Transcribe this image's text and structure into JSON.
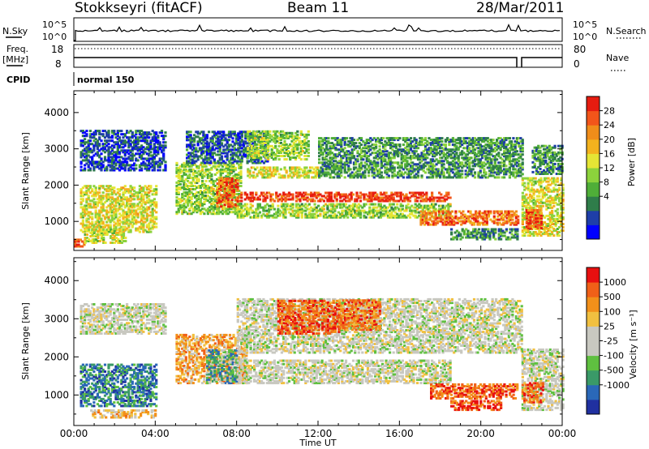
{
  "header": {
    "station": "Stokkseyri (fitACF)",
    "beam": "Beam 11",
    "date": "28/Mar/2011"
  },
  "strips": {
    "nsky_label": "N.Sky",
    "nsky_ticks": [
      "10^5",
      "10^0"
    ],
    "nsearch_label": "N.Search",
    "nsearch_ticks": [
      "10^5",
      "10^0"
    ],
    "freq_label": "Freq.",
    "freq_unit": "[MHz]",
    "freq_ticks": [
      "18",
      "8"
    ],
    "nave_label": "Nave",
    "nave_ticks": [
      "80",
      "0"
    ],
    "cpid_label": "CPID",
    "cpid_value": "normal 150"
  },
  "chart_data": [
    {
      "type": "heatmap",
      "quantity": "power",
      "xlabel": "Time UT",
      "ylabel": "Slant Range [km]",
      "x_ticks": [
        "00:00",
        "04:00",
        "08:00",
        "12:00",
        "16:00",
        "20:00",
        "00:00"
      ],
      "y_ticks": [
        "1000",
        "2000",
        "3000",
        "4000"
      ],
      "xlim_hours": [
        0,
        24
      ],
      "ylim_km": [
        200,
        4600
      ],
      "colorbar": {
        "label": "Power [dB]",
        "ticks": [
          "28",
          "24",
          "20",
          "16",
          "12",
          "8",
          "4"
        ],
        "colors": [
          "#0000ff",
          "#1e3ea8",
          "#2f7d4a",
          "#4fae38",
          "#8cd23c",
          "#e5e535",
          "#f3b21e",
          "#f08d1a",
          "#f2551a",
          "#e61c10"
        ]
      },
      "regions": [
        {
          "t": [
            0.3,
            4.0
          ],
          "r": [
            700,
            2000
          ],
          "level": 0.55
        },
        {
          "t": [
            0.0,
            0.5
          ],
          "r": [
            300,
            500
          ],
          "level": 0.85
        },
        {
          "t": [
            0.5,
            2.5
          ],
          "r": [
            400,
            800
          ],
          "level": 0.5
        },
        {
          "t": [
            0.3,
            4.5
          ],
          "r": [
            2400,
            3500
          ],
          "level": 0.15
        },
        {
          "t": [
            5.0,
            8.2
          ],
          "r": [
            1200,
            2600
          ],
          "level": 0.45
        },
        {
          "t": [
            7.0,
            8.0
          ],
          "r": [
            1400,
            2200
          ],
          "level": 0.85
        },
        {
          "t": [
            5.5,
            9.5
          ],
          "r": [
            2600,
            3500
          ],
          "level": 0.2
        },
        {
          "t": [
            8.0,
            18.5
          ],
          "r": [
            1100,
            1500
          ],
          "level": 0.45
        },
        {
          "t": [
            8.0,
            18.5
          ],
          "r": [
            1550,
            1800
          ],
          "level": 0.9
        },
        {
          "t": [
            8.5,
            12.0
          ],
          "r": [
            2200,
            2500
          ],
          "level": 0.55
        },
        {
          "t": [
            8.5,
            11.5
          ],
          "r": [
            2700,
            3500
          ],
          "level": 0.45
        },
        {
          "t": [
            12.0,
            22.0
          ],
          "r": [
            2200,
            3300
          ],
          "level": 0.3
        },
        {
          "t": [
            17.0,
            21.8
          ],
          "r": [
            900,
            1300
          ],
          "level": 0.8
        },
        {
          "t": [
            18.5,
            21.8
          ],
          "r": [
            500,
            800
          ],
          "level": 0.3
        },
        {
          "t": [
            22.0,
            24.0
          ],
          "r": [
            600,
            2200
          ],
          "level": 0.55
        },
        {
          "t": [
            22.2,
            23.0
          ],
          "r": [
            800,
            1300
          ],
          "level": 0.85
        },
        {
          "t": [
            22.5,
            24.0
          ],
          "r": [
            2300,
            3100
          ],
          "level": 0.3
        }
      ]
    },
    {
      "type": "heatmap",
      "quantity": "velocity",
      "xlabel": "Time UT",
      "ylabel": "Slant Range [km]",
      "x_ticks": [
        "00:00",
        "04:00",
        "08:00",
        "12:00",
        "16:00",
        "20:00",
        "00:00"
      ],
      "y_ticks": [
        "1000",
        "2000",
        "3000",
        "4000"
      ],
      "xlim_hours": [
        0,
        24
      ],
      "ylim_km": [
        200,
        4600
      ],
      "colorbar": {
        "label": "Velocity [m s⁻¹]",
        "ticks": [
          "1000",
          "500",
          "100",
          "25",
          "-25",
          "-100",
          "-500",
          "-1000"
        ],
        "colors": [
          "#2030a0",
          "#2a68b8",
          "#3a9a68",
          "#5fc040",
          "#c8c8c0",
          "#c8c8c0",
          "#f1c040",
          "#f2901a",
          "#f06018",
          "#e81010"
        ]
      },
      "regions": [
        {
          "t": [
            0.3,
            4.0
          ],
          "r": [
            700,
            1800
          ],
          "level": 0.2
        },
        {
          "t": [
            0.8,
            4.0
          ],
          "r": [
            400,
            600
          ],
          "level": 0.65
        },
        {
          "t": [
            0.3,
            4.5
          ],
          "r": [
            2600,
            3400
          ],
          "level": 0.5
        },
        {
          "t": [
            5.0,
            8.5
          ],
          "r": [
            1300,
            2600
          ],
          "level": 0.7
        },
        {
          "t": [
            6.5,
            8.0
          ],
          "r": [
            1300,
            2200
          ],
          "level": 0.3
        },
        {
          "t": [
            8.0,
            18.5
          ],
          "r": [
            1300,
            1900
          ],
          "level": 0.5
        },
        {
          "t": [
            8.0,
            22.0
          ],
          "r": [
            2100,
            3500
          ],
          "level": 0.5
        },
        {
          "t": [
            10.0,
            13.0
          ],
          "r": [
            2600,
            3500
          ],
          "level": 0.85
        },
        {
          "t": [
            13.0,
            15.0
          ],
          "r": [
            2700,
            3500
          ],
          "level": 0.8
        },
        {
          "t": [
            17.5,
            21.8
          ],
          "r": [
            900,
            1300
          ],
          "level": 0.85
        },
        {
          "t": [
            18.5,
            21.0
          ],
          "r": [
            600,
            850
          ],
          "level": 0.9
        },
        {
          "t": [
            22.0,
            24.0
          ],
          "r": [
            600,
            2200
          ],
          "level": 0.5
        },
        {
          "t": [
            22.0,
            23.0
          ],
          "r": [
            800,
            1300
          ],
          "level": 0.8
        }
      ]
    }
  ]
}
